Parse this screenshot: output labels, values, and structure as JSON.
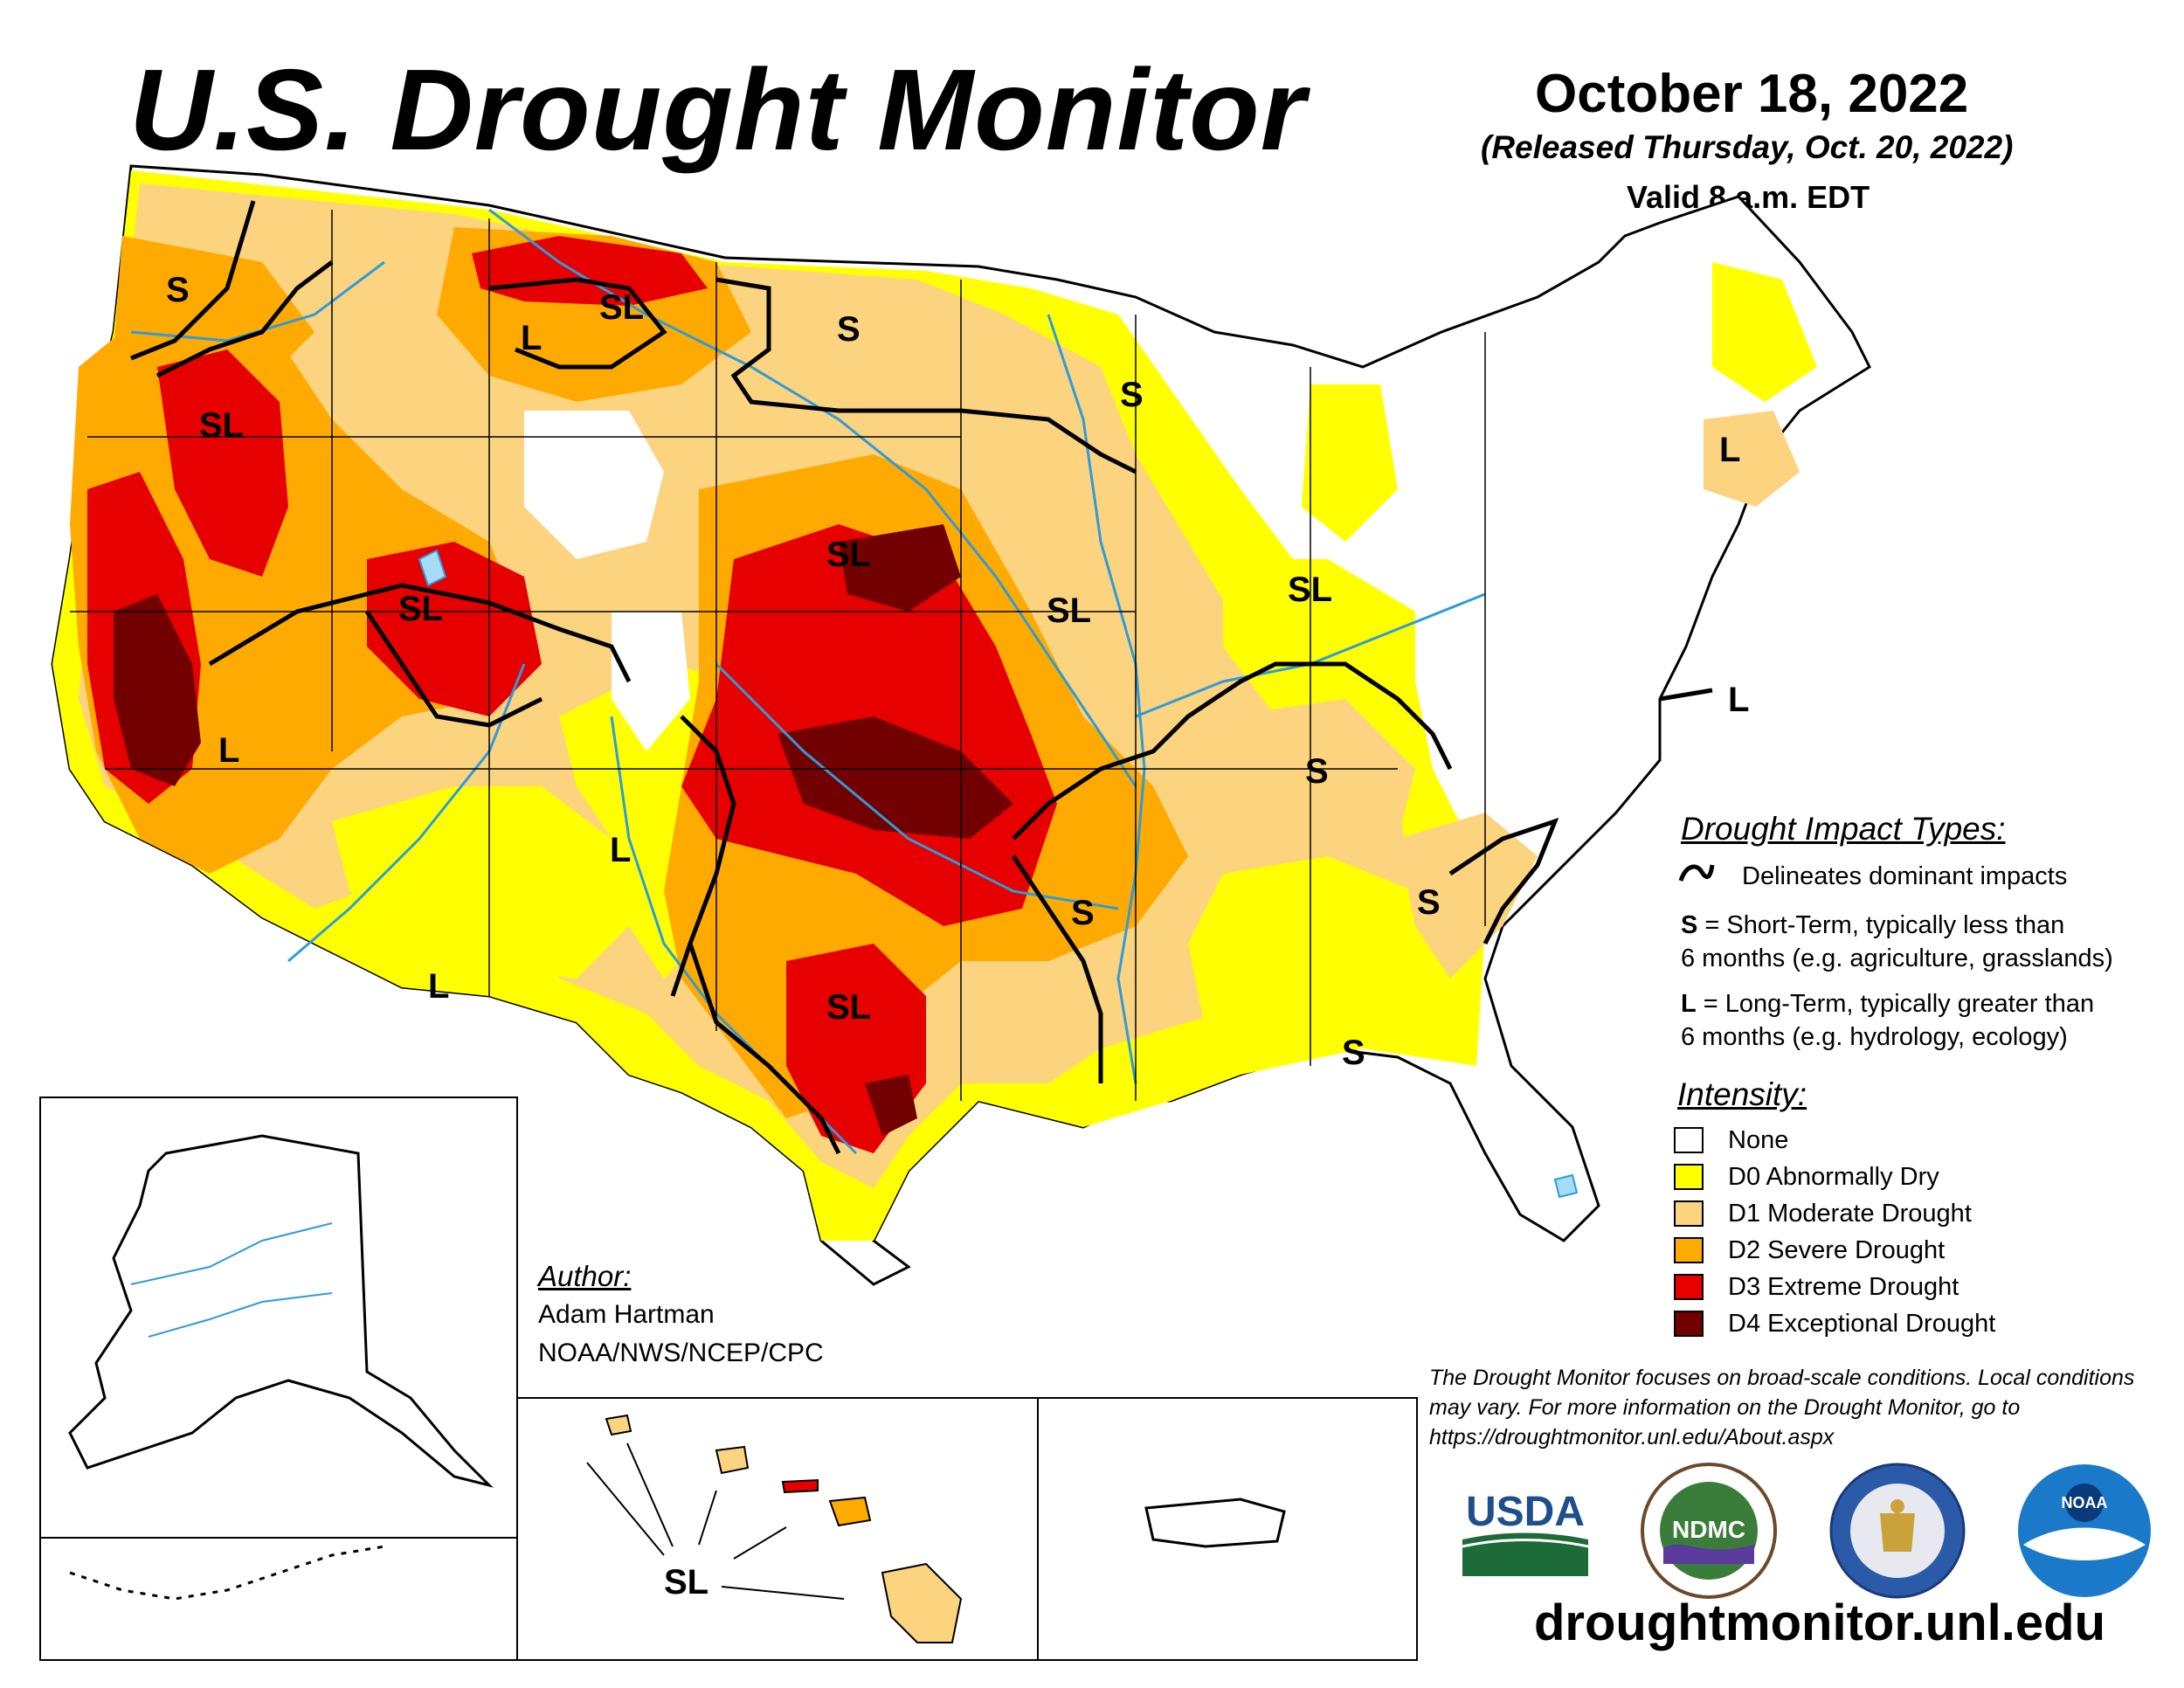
{
  "header": {
    "title": "U.S. Drought Monitor",
    "date": "October 18, 2022",
    "released": "(Released Thursday, Oct. 20, 2022)",
    "valid": "Valid 8 a.m. EDT"
  },
  "impact_legend": {
    "heading": "Drought Impact Types:",
    "line_text": "Delineates dominant impacts",
    "short_term_1": "= Short-Term, typically less than",
    "short_term_2": "6 months (e.g. agriculture, grasslands)",
    "long_term_1": "= Long-Term, typically greater than",
    "long_term_2": "6 months (e.g. hydrology, ecology)",
    "s_key": "S",
    "l_key": "L"
  },
  "intensity_legend": {
    "heading": "Intensity:",
    "items": [
      {
        "label": "None",
        "color": "#ffffff"
      },
      {
        "label": "D0 Abnormally Dry",
        "color": "#ffff00"
      },
      {
        "label": "D1 Moderate Drought",
        "color": "#fcd37f"
      },
      {
        "label": "D2 Severe Drought",
        "color": "#ffaa00"
      },
      {
        "label": "D3 Extreme Drought",
        "color": "#e60000"
      },
      {
        "label": "D4 Exceptional Drought",
        "color": "#730000"
      }
    ]
  },
  "map_labels": {
    "s": "S",
    "l": "L",
    "sl": "SL"
  },
  "author": {
    "heading": "Author:",
    "name": "Adam Hartman",
    "org": "NOAA/NWS/NCEP/CPC"
  },
  "disclaimer": "The Drought Monitor focuses on broad-scale conditions. Local conditions may vary. For more information on the Drought Monitor, go to https://droughtmonitor.unl.edu/About.aspx",
  "logos": {
    "usda": "USDA",
    "ndmc": "NDMC",
    "noaa": "NOAA"
  },
  "url": "droughtmonitor.unl.edu",
  "colors": {
    "river": "#2e9bdb",
    "water": "#a6dcf5"
  }
}
